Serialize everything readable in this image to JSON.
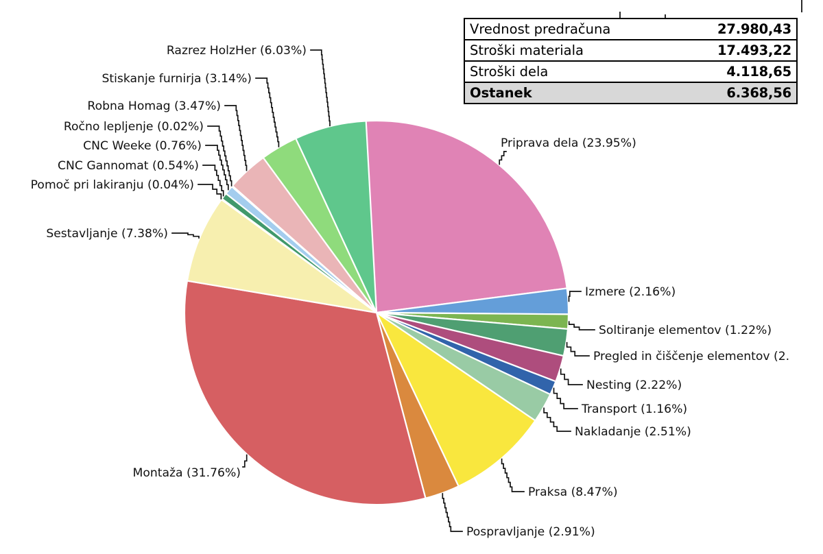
{
  "table": {
    "rows": [
      {
        "label": "Vrednost predračuna",
        "value": "27.980,43",
        "highlight": false
      },
      {
        "label": "Stroški materiala",
        "value": "17.493,22",
        "highlight": false
      },
      {
        "label": "Stroški dela",
        "value": "4.118,65",
        "highlight": false
      },
      {
        "label": "Ostanek",
        "value": "6.368,56",
        "highlight": true
      }
    ]
  },
  "chart_data": {
    "type": "pie",
    "title": "",
    "unit": "percent",
    "legend_position": "none",
    "start_angle_deg": -3.5,
    "direction": "clockwise",
    "slices": [
      {
        "label": "Priprava dela",
        "value": 23.95,
        "display": "Priprava dela (23.95%)",
        "color": "#E083B5"
      },
      {
        "label": "Izmere",
        "value": 2.16,
        "display": "Izmere (2.16%)",
        "color": "#649ED9"
      },
      {
        "label": "Soltiranje elementov",
        "value": 1.22,
        "display": "Soltiranje elementov (1.22%)",
        "color": "#7CB551"
      },
      {
        "label": "Pregled in čiščenje elementov",
        "value": 2.26,
        "display": "Pregled in čiščenje elementov (2.",
        "color": "#4F9F72"
      },
      {
        "label": "Nesting",
        "value": 2.22,
        "display": "Nesting (2.22%)",
        "color": "#AE4D7D"
      },
      {
        "label": "Transport",
        "value": 1.16,
        "display": "Transport (1.16%)",
        "color": "#3164AB"
      },
      {
        "label": "Nakladanje",
        "value": 2.51,
        "display": "Nakladanje (2.51%)",
        "color": "#99CBA5"
      },
      {
        "label": "Praksa",
        "value": 8.47,
        "display": "Praksa (8.47%)",
        "color": "#F9E73E"
      },
      {
        "label": "Pospravljanje",
        "value": 2.91,
        "display": "Pospravljanje (2.91%)",
        "color": "#DA893E"
      },
      {
        "label": "Montaža",
        "value": 31.76,
        "display": "Montaža (31.76%)",
        "color": "#D65F62"
      },
      {
        "label": "Sestavljanje",
        "value": 7.38,
        "display": "Sestavljanje (7.38%)",
        "color": "#F7EFAF"
      },
      {
        "label": "Pomoč pri lakiranju",
        "value": 0.04,
        "display": "Pomoč pri lakiranju (0.04%)",
        "color": "#8FCF9F"
      },
      {
        "label": "CNC Gannomat",
        "value": 0.54,
        "display": "CNC Gannomat (0.54%)",
        "color": "#41996B"
      },
      {
        "label": "CNC Weeke",
        "value": 0.76,
        "display": "CNC Weeke (0.76%)",
        "color": "#A4CDEE"
      },
      {
        "label": "Ročno lepljenje",
        "value": 0.02,
        "display": "Ročno lepljenje (0.02%)",
        "color": "#D9DF5E"
      },
      {
        "label": "Robna Homag",
        "value": 3.47,
        "display": "Robna Homag (3.47%)",
        "color": "#EAB5B7"
      },
      {
        "label": "Stiskanje furnirja",
        "value": 3.14,
        "display": "Stiskanje furnirja (3.14%)",
        "color": "#8FDB7C"
      },
      {
        "label": "Razrez HolzHer (6.03%)",
        "value": 6.03,
        "display": "Razrez HolzHer (6.03%)",
        "color": "#5FC78C"
      }
    ]
  }
}
